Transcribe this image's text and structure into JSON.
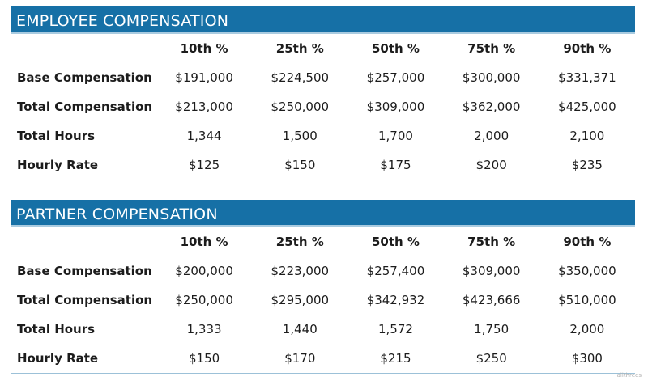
{
  "employee": {
    "title": "EMPLOYEE COMPENSATION",
    "columns": [
      "10th %",
      "25th %",
      "50th %",
      "75th %",
      "90th %"
    ],
    "rows": [
      {
        "label": "Base Compensation",
        "values": [
          "$191,000",
          "$224,500",
          "$257,000",
          "$300,000",
          "$331,371"
        ]
      },
      {
        "label": "Total Compensation",
        "values": [
          "$213,000",
          "$250,000",
          "$309,000",
          "$362,000",
          "$425,000"
        ]
      },
      {
        "label": "Total Hours",
        "values": [
          "1,344",
          "1,500",
          "1,700",
          "2,000",
          "2,100"
        ]
      },
      {
        "label": "Hourly Rate",
        "values": [
          "$125",
          "$150",
          "$175",
          "$200",
          "$235"
        ]
      }
    ]
  },
  "partner": {
    "title": "PARTNER COMPENSATION",
    "columns": [
      "10th %",
      "25th %",
      "50th %",
      "75th %",
      "90th %"
    ],
    "rows": [
      {
        "label": "Base Compensation",
        "values": [
          "$200,000",
          "$223,000",
          "$257,400",
          "$309,000",
          "$350,000"
        ]
      },
      {
        "label": "Total Compensation",
        "values": [
          "$250,000",
          "$295,000",
          "$342,932",
          "$423,666",
          "$510,000"
        ]
      },
      {
        "label": "Total Hours",
        "values": [
          "1,333",
          "1,440",
          "1,572",
          "1,750",
          "2,000"
        ]
      },
      {
        "label": "Hourly Rate",
        "values": [
          "$150",
          "$170",
          "$215",
          "$250",
          "$300"
        ]
      }
    ]
  },
  "watermark": "allthrees",
  "colors": {
    "banner": "#1670a6",
    "banner_border": "#a9cbe0",
    "rule": "#9cc1d8"
  }
}
